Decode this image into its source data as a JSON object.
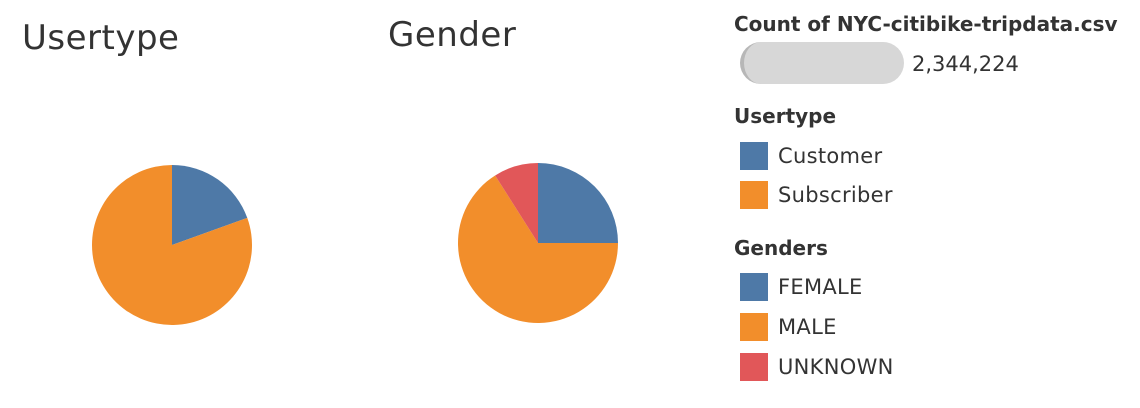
{
  "count": {
    "title": "Count of NYC-citibike-tripdata.csv",
    "value": "2,344,224"
  },
  "legends": {
    "usertype": {
      "title": "Usertype",
      "items": [
        {
          "label": "Customer",
          "color": "#4e79a7"
        },
        {
          "label": "Subscriber",
          "color": "#f28e2b"
        }
      ]
    },
    "gender": {
      "title": "Genders",
      "items": [
        {
          "label": "FEMALE",
          "color": "#4e79a7"
        },
        {
          "label": "MALE",
          "color": "#f28e2b"
        },
        {
          "label": "UNKNOWN",
          "color": "#e15759"
        }
      ]
    }
  },
  "chart_data": [
    {
      "type": "pie",
      "title": "Usertype",
      "categories": [
        "Customer",
        "Subscriber"
      ],
      "values": [
        19.5,
        80.5
      ],
      "colors": [
        "#4e79a7",
        "#f28e2b"
      ],
      "value_unit": "percent of trips (estimated)"
    },
    {
      "type": "pie",
      "title": "Gender",
      "categories": [
        "FEMALE",
        "MALE",
        "UNKNOWN"
      ],
      "values": [
        25,
        66,
        9
      ],
      "colors": [
        "#4e79a7",
        "#f28e2b",
        "#e15759"
      ],
      "value_unit": "percent of trips (estimated)"
    }
  ]
}
